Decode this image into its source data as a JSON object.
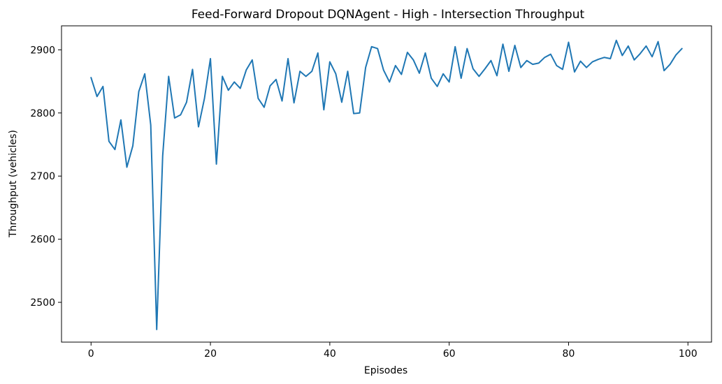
{
  "chart_data": {
    "type": "line",
    "title": "Feed-Forward Dropout DQNAgent - High - Intersection Throughput",
    "xlabel": "Episodes",
    "ylabel": "Throughput (vehicles)",
    "xlim": [
      -4.95,
      103.95
    ],
    "ylim": [
      2437,
      2938
    ],
    "xticks": [
      0,
      20,
      40,
      60,
      80,
      100
    ],
    "yticks": [
      2500,
      2600,
      2700,
      2800,
      2900
    ],
    "grid": false,
    "colors": {
      "series": "#1f77b4"
    },
    "series": [
      {
        "x": [
          0,
          1,
          2,
          3,
          4,
          5,
          6,
          7,
          8,
          9,
          10,
          11,
          12,
          13,
          14,
          15,
          16,
          17,
          18,
          19,
          20,
          21,
          22,
          23,
          24,
          25,
          26,
          27,
          28,
          29,
          30,
          31,
          32,
          33,
          34,
          35,
          36,
          37,
          38,
          39,
          40,
          41,
          42,
          43,
          44,
          45,
          46,
          47,
          48,
          49,
          50,
          51,
          52,
          53,
          54,
          55,
          56,
          57,
          58,
          59,
          60,
          61,
          62,
          63,
          64,
          65,
          66,
          67,
          68,
          69,
          70,
          71,
          72,
          73,
          74,
          75,
          76,
          77,
          78,
          79,
          80,
          81,
          82,
          83,
          84,
          85,
          86,
          87,
          88,
          89,
          90,
          91,
          92,
          93,
          94,
          95,
          96,
          97,
          98,
          99
        ],
        "values": [
          2856,
          2826,
          2842,
          2755,
          2742,
          2789,
          2714,
          2748,
          2834,
          2862,
          2781,
          2457,
          2732,
          2858,
          2792,
          2797,
          2817,
          2869,
          2778,
          2823,
          2886,
          2719,
          2858,
          2836,
          2849,
          2839,
          2868,
          2884,
          2823,
          2809,
          2843,
          2853,
          2819,
          2886,
          2816,
          2866,
          2858,
          2866,
          2895,
          2805,
          2881,
          2862,
          2817,
          2866,
          2799,
          2800,
          2872,
          2905,
          2902,
          2868,
          2849,
          2875,
          2861,
          2896,
          2884,
          2863,
          2895,
          2855,
          2842,
          2862,
          2849,
          2905,
          2855,
          2902,
          2870,
          2858,
          2870,
          2883,
          2859,
          2909,
          2866,
          2907,
          2872,
          2883,
          2877,
          2879,
          2888,
          2893,
          2875,
          2869,
          2912,
          2865,
          2882,
          2872,
          2881,
          2885,
          2888,
          2886,
          2915,
          2891,
          2906,
          2884,
          2894,
          2906,
          2889,
          2913,
          2867,
          2877,
          2892,
          2902
        ]
      }
    ]
  }
}
